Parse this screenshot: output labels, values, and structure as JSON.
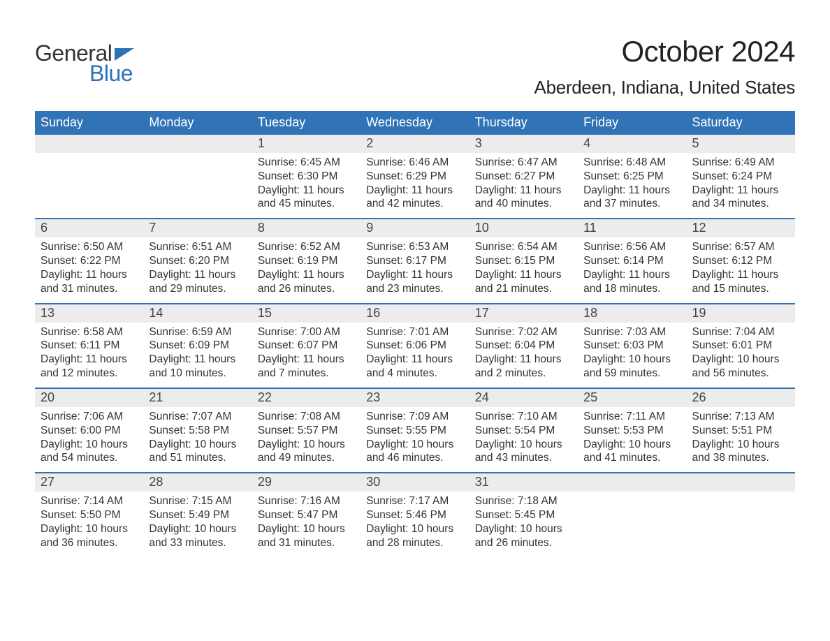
{
  "logo": {
    "text1": "General",
    "text2": "Blue",
    "flag_color": "#2d72b8",
    "text1_color": "#333333",
    "text2_color": "#2d72b8"
  },
  "title": {
    "month": "October 2024",
    "location": "Aberdeen, Indiana, United States"
  },
  "calendar": {
    "header_bg": "#3173b7",
    "header_fg": "#ffffff",
    "daynum_bg": "#ececec",
    "row_border": "#3173b7",
    "text_color": "#333333",
    "weekdays": [
      "Sunday",
      "Monday",
      "Tuesday",
      "Wednesday",
      "Thursday",
      "Friday",
      "Saturday"
    ],
    "weeks": [
      [
        {
          "day": "",
          "sunrise": "",
          "sunset": "",
          "daylight": ""
        },
        {
          "day": "",
          "sunrise": "",
          "sunset": "",
          "daylight": ""
        },
        {
          "day": "1",
          "sunrise": "Sunrise: 6:45 AM",
          "sunset": "Sunset: 6:30 PM",
          "daylight": "Daylight: 11 hours and 45 minutes."
        },
        {
          "day": "2",
          "sunrise": "Sunrise: 6:46 AM",
          "sunset": "Sunset: 6:29 PM",
          "daylight": "Daylight: 11 hours and 42 minutes."
        },
        {
          "day": "3",
          "sunrise": "Sunrise: 6:47 AM",
          "sunset": "Sunset: 6:27 PM",
          "daylight": "Daylight: 11 hours and 40 minutes."
        },
        {
          "day": "4",
          "sunrise": "Sunrise: 6:48 AM",
          "sunset": "Sunset: 6:25 PM",
          "daylight": "Daylight: 11 hours and 37 minutes."
        },
        {
          "day": "5",
          "sunrise": "Sunrise: 6:49 AM",
          "sunset": "Sunset: 6:24 PM",
          "daylight": "Daylight: 11 hours and 34 minutes."
        }
      ],
      [
        {
          "day": "6",
          "sunrise": "Sunrise: 6:50 AM",
          "sunset": "Sunset: 6:22 PM",
          "daylight": "Daylight: 11 hours and 31 minutes."
        },
        {
          "day": "7",
          "sunrise": "Sunrise: 6:51 AM",
          "sunset": "Sunset: 6:20 PM",
          "daylight": "Daylight: 11 hours and 29 minutes."
        },
        {
          "day": "8",
          "sunrise": "Sunrise: 6:52 AM",
          "sunset": "Sunset: 6:19 PM",
          "daylight": "Daylight: 11 hours and 26 minutes."
        },
        {
          "day": "9",
          "sunrise": "Sunrise: 6:53 AM",
          "sunset": "Sunset: 6:17 PM",
          "daylight": "Daylight: 11 hours and 23 minutes."
        },
        {
          "day": "10",
          "sunrise": "Sunrise: 6:54 AM",
          "sunset": "Sunset: 6:15 PM",
          "daylight": "Daylight: 11 hours and 21 minutes."
        },
        {
          "day": "11",
          "sunrise": "Sunrise: 6:56 AM",
          "sunset": "Sunset: 6:14 PM",
          "daylight": "Daylight: 11 hours and 18 minutes."
        },
        {
          "day": "12",
          "sunrise": "Sunrise: 6:57 AM",
          "sunset": "Sunset: 6:12 PM",
          "daylight": "Daylight: 11 hours and 15 minutes."
        }
      ],
      [
        {
          "day": "13",
          "sunrise": "Sunrise: 6:58 AM",
          "sunset": "Sunset: 6:11 PM",
          "daylight": "Daylight: 11 hours and 12 minutes."
        },
        {
          "day": "14",
          "sunrise": "Sunrise: 6:59 AM",
          "sunset": "Sunset: 6:09 PM",
          "daylight": "Daylight: 11 hours and 10 minutes."
        },
        {
          "day": "15",
          "sunrise": "Sunrise: 7:00 AM",
          "sunset": "Sunset: 6:07 PM",
          "daylight": "Daylight: 11 hours and 7 minutes."
        },
        {
          "day": "16",
          "sunrise": "Sunrise: 7:01 AM",
          "sunset": "Sunset: 6:06 PM",
          "daylight": "Daylight: 11 hours and 4 minutes."
        },
        {
          "day": "17",
          "sunrise": "Sunrise: 7:02 AM",
          "sunset": "Sunset: 6:04 PM",
          "daylight": "Daylight: 11 hours and 2 minutes."
        },
        {
          "day": "18",
          "sunrise": "Sunrise: 7:03 AM",
          "sunset": "Sunset: 6:03 PM",
          "daylight": "Daylight: 10 hours and 59 minutes."
        },
        {
          "day": "19",
          "sunrise": "Sunrise: 7:04 AM",
          "sunset": "Sunset: 6:01 PM",
          "daylight": "Daylight: 10 hours and 56 minutes."
        }
      ],
      [
        {
          "day": "20",
          "sunrise": "Sunrise: 7:06 AM",
          "sunset": "Sunset: 6:00 PM",
          "daylight": "Daylight: 10 hours and 54 minutes."
        },
        {
          "day": "21",
          "sunrise": "Sunrise: 7:07 AM",
          "sunset": "Sunset: 5:58 PM",
          "daylight": "Daylight: 10 hours and 51 minutes."
        },
        {
          "day": "22",
          "sunrise": "Sunrise: 7:08 AM",
          "sunset": "Sunset: 5:57 PM",
          "daylight": "Daylight: 10 hours and 49 minutes."
        },
        {
          "day": "23",
          "sunrise": "Sunrise: 7:09 AM",
          "sunset": "Sunset: 5:55 PM",
          "daylight": "Daylight: 10 hours and 46 minutes."
        },
        {
          "day": "24",
          "sunrise": "Sunrise: 7:10 AM",
          "sunset": "Sunset: 5:54 PM",
          "daylight": "Daylight: 10 hours and 43 minutes."
        },
        {
          "day": "25",
          "sunrise": "Sunrise: 7:11 AM",
          "sunset": "Sunset: 5:53 PM",
          "daylight": "Daylight: 10 hours and 41 minutes."
        },
        {
          "day": "26",
          "sunrise": "Sunrise: 7:13 AM",
          "sunset": "Sunset: 5:51 PM",
          "daylight": "Daylight: 10 hours and 38 minutes."
        }
      ],
      [
        {
          "day": "27",
          "sunrise": "Sunrise: 7:14 AM",
          "sunset": "Sunset: 5:50 PM",
          "daylight": "Daylight: 10 hours and 36 minutes."
        },
        {
          "day": "28",
          "sunrise": "Sunrise: 7:15 AM",
          "sunset": "Sunset: 5:49 PM",
          "daylight": "Daylight: 10 hours and 33 minutes."
        },
        {
          "day": "29",
          "sunrise": "Sunrise: 7:16 AM",
          "sunset": "Sunset: 5:47 PM",
          "daylight": "Daylight: 10 hours and 31 minutes."
        },
        {
          "day": "30",
          "sunrise": "Sunrise: 7:17 AM",
          "sunset": "Sunset: 5:46 PM",
          "daylight": "Daylight: 10 hours and 28 minutes."
        },
        {
          "day": "31",
          "sunrise": "Sunrise: 7:18 AM",
          "sunset": "Sunset: 5:45 PM",
          "daylight": "Daylight: 10 hours and 26 minutes."
        },
        {
          "day": "",
          "sunrise": "",
          "sunset": "",
          "daylight": ""
        },
        {
          "day": "",
          "sunrise": "",
          "sunset": "",
          "daylight": ""
        }
      ]
    ]
  }
}
